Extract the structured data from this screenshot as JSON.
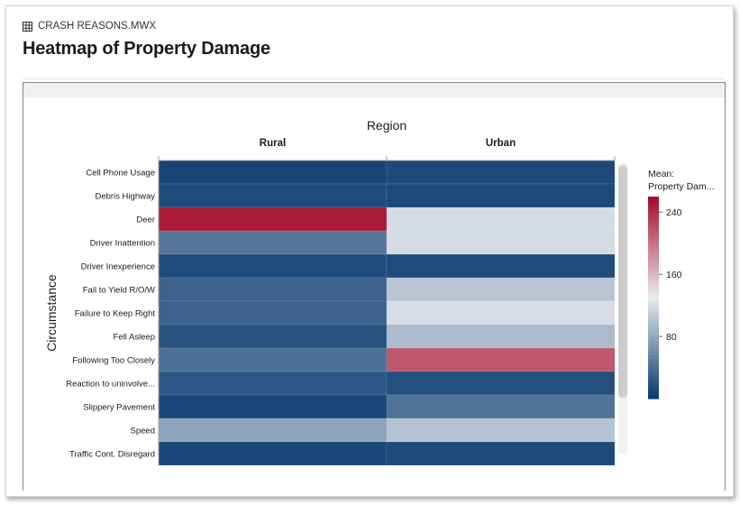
{
  "file": {
    "icon": "table-grid-icon",
    "name": "CRASH REASONS.MWX"
  },
  "title": "Heatmap of Property Damage",
  "chart_data": {
    "type": "heatmap",
    "column_axis_title": "Region",
    "row_axis_title": "Circumstance",
    "columns": [
      "Rural",
      "Urban"
    ],
    "rows": [
      "Cell Phone Usage",
      "Debris Highway",
      "Deer",
      "Driver Inattention",
      "Driver Inexperience",
      "Fail to Yield R/O/W",
      "Failure to Keep Right",
      "Fell Asleep",
      "Following Too Closely",
      "Reaction to uninvolve...",
      "Slippery Pavement",
      "Speed",
      "Traffic Cont. Disregard"
    ],
    "values": [
      [
        8,
        12
      ],
      [
        14,
        12
      ],
      [
        250,
        118
      ],
      [
        45,
        118
      ],
      [
        14,
        14
      ],
      [
        30,
        102
      ],
      [
        30,
        120
      ],
      [
        18,
        95
      ],
      [
        40,
        215
      ],
      [
        22,
        16
      ],
      [
        10,
        42
      ],
      [
        78,
        100
      ],
      [
        10,
        12
      ]
    ],
    "legend": {
      "title_line1": "Mean:",
      "title_line2": "Property Dam...",
      "ticks": [
        80,
        160,
        240
      ],
      "min": 0,
      "max": 260,
      "colors": {
        "low": "#08396f",
        "mid": "#e9ebef",
        "high": "#a50a28"
      }
    }
  }
}
